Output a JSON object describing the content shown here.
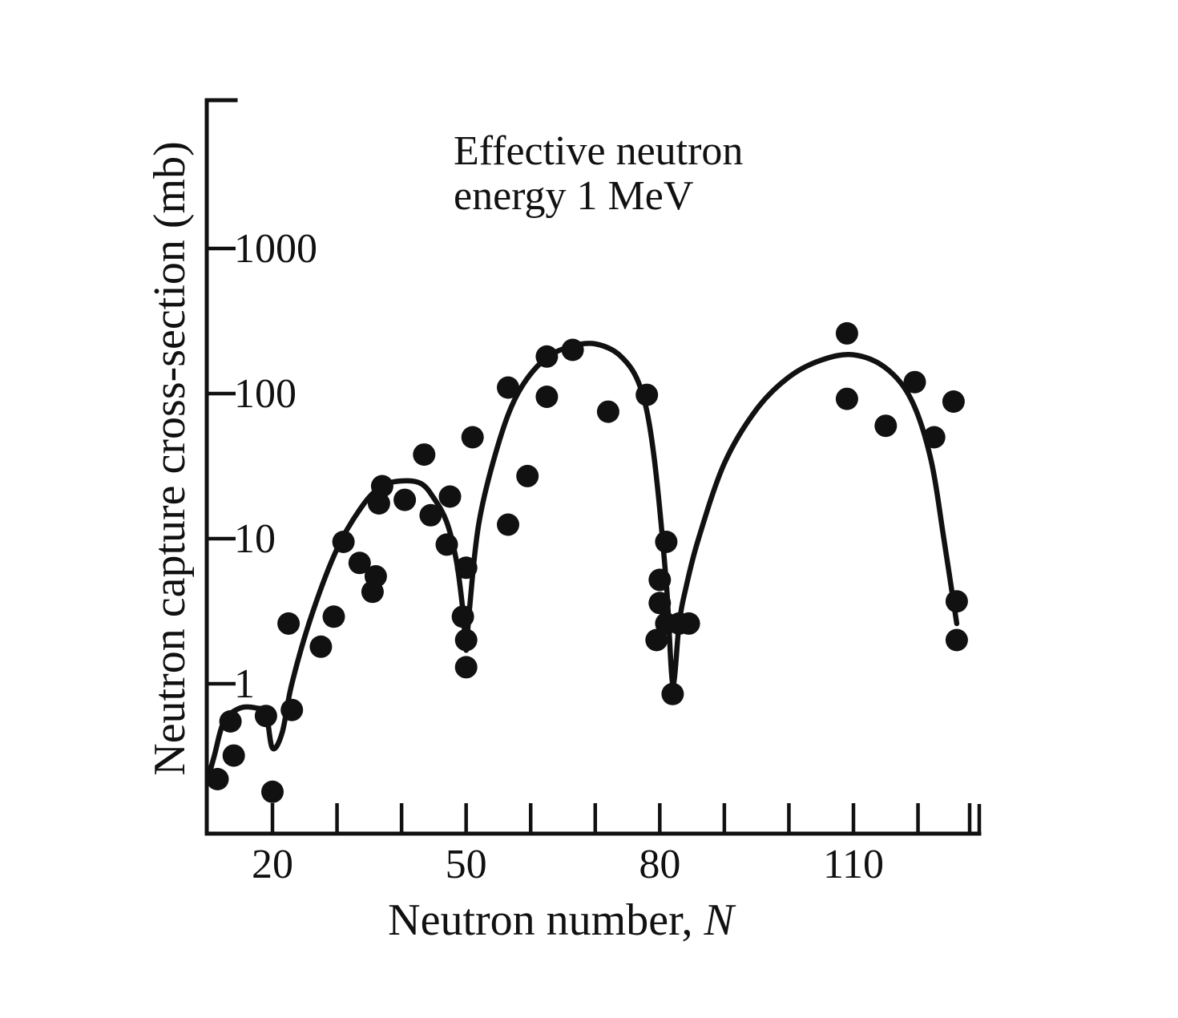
{
  "chart_data": {
    "type": "scatter",
    "title": "",
    "annotation": [
      "Effective neutron",
      "energy 1 MeV"
    ],
    "xlabel": "Neutron number, ",
    "xlabel_italic": "N",
    "ylabel": "Neutron capture cross-section (mb)",
    "xlim": [
      10,
      128
    ],
    "ylim": [
      0.1,
      10000
    ],
    "y_scale": "log",
    "grid": false,
    "legend": "none",
    "x_major_ticks": [
      20,
      50,
      80,
      110
    ],
    "x_major_tick_labels": [
      "20",
      "50",
      "80",
      "110"
    ],
    "x_minor_ticks": [
      30,
      40,
      60,
      70,
      90,
      100,
      120,
      128
    ],
    "y_ticks": [
      1,
      10,
      100,
      1000
    ],
    "y_tick_labels": [
      "1",
      "10",
      "100",
      "1000"
    ],
    "series": [
      {
        "kind": "points",
        "x": [
          11.5,
          13.5,
          14,
          19,
          20,
          22.5,
          23,
          27.5,
          29.5,
          31,
          33.5,
          35.5,
          36,
          36.5,
          37,
          40.5,
          43.5,
          44.5,
          47,
          47.5,
          49.5,
          50,
          50,
          50,
          51,
          56.5,
          56.5,
          59.5,
          62.5,
          62.5,
          66.5,
          72,
          78,
          79.5,
          80,
          80,
          81,
          81,
          82,
          83,
          84.5,
          109,
          109,
          115,
          119.5,
          122.5,
          125.5,
          126,
          126
        ],
        "y": [
          0.22,
          0.55,
          0.32,
          0.6,
          0.18,
          2.6,
          0.66,
          1.8,
          2.9,
          9.5,
          6.8,
          4.3,
          5.5,
          17.5,
          23,
          18.5,
          38,
          14.5,
          9.1,
          19.5,
          2.9,
          1.3,
          2.0,
          6.3,
          50,
          12.5,
          110,
          27,
          95,
          180,
          200,
          75,
          98,
          2.0,
          3.6,
          5.2,
          9.5,
          2.6,
          0.85,
          2.6,
          2.6,
          260,
          92,
          60,
          120,
          50,
          88,
          2.0,
          3.7
        ]
      },
      {
        "kind": "fit-curve",
        "x": [
          10,
          11,
          12.5,
          15,
          17.5,
          19,
          20,
          21.5,
          23,
          26,
          30,
          34,
          37,
          40,
          43,
          45,
          47,
          48.5,
          49.5,
          50,
          50.5,
          52,
          55,
          58,
          62,
          66,
          70,
          74,
          77,
          79,
          81,
          82,
          83,
          84,
          86,
          90,
          95,
          100,
          105,
          110,
          115,
          119,
          122,
          124,
          126
        ],
        "y": [
          0.22,
          0.32,
          0.55,
          0.68,
          0.68,
          0.62,
          0.36,
          0.46,
          1.0,
          2.9,
          8.5,
          17,
          23,
          25,
          24,
          19,
          13,
          7,
          3.2,
          1.7,
          3.2,
          13,
          45,
          100,
          170,
          210,
          220,
          180,
          110,
          40,
          5,
          1.0,
          2.6,
          4.5,
          10,
          33,
          78,
          130,
          170,
          185,
          150,
          90,
          35,
          10,
          2.6
        ]
      }
    ]
  }
}
